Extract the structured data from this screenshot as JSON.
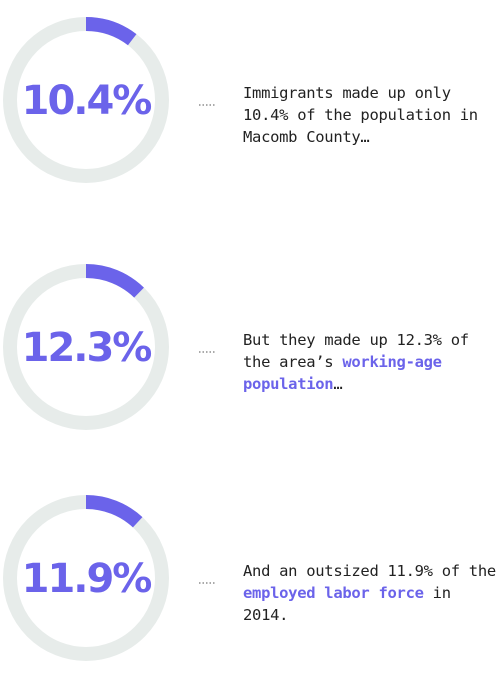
{
  "chart_data": [
    {
      "type": "donut",
      "values": [
        10.4
      ],
      "value_labels": [
        "10.4%"
      ],
      "ylim": [
        0,
        100
      ],
      "color": "#6b63ea",
      "track_color": "#e7ecea",
      "caption": [
        {
          "text": "Immigrants made up only 10.4% of the population in Macomb County…",
          "bold": false
        }
      ]
    },
    {
      "type": "donut",
      "values": [
        12.3
      ],
      "value_labels": [
        "12.3%"
      ],
      "ylim": [
        0,
        100
      ],
      "color": "#6b63ea",
      "track_color": "#e7ecea",
      "caption": [
        {
          "text": "But they made up 12.3% of the area’s ",
          "bold": false
        },
        {
          "text": "working-age population",
          "bold": true
        },
        {
          "text": "…",
          "bold": false
        }
      ]
    },
    {
      "type": "donut",
      "values": [
        11.9
      ],
      "value_labels": [
        "11.9%"
      ],
      "ylim": [
        0,
        100
      ],
      "color": "#6b63ea",
      "track_color": "#e7ecea",
      "caption": [
        {
          "text": "And an outsized 11.9% of the ",
          "bold": false
        },
        {
          "text": "employed labor force",
          "bold": true
        },
        {
          "text": " in 2014.",
          "bold": false
        }
      ]
    }
  ]
}
